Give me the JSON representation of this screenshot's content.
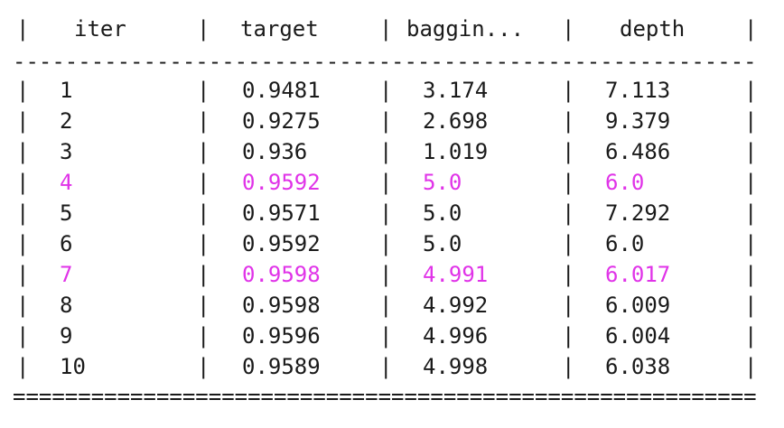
{
  "table": {
    "pipe": "|",
    "headers": {
      "iter": "iter",
      "target": "target",
      "bagging": "baggin...",
      "depth": "depth"
    },
    "header_rule": "------------------------------------------------------------",
    "footer_rule": "============================================================",
    "highlight_color": "#e033e8",
    "rows": [
      {
        "iter": "1",
        "target": "0.9481",
        "bagging": "3.174",
        "depth": "7.113",
        "highlight": false
      },
      {
        "iter": "2",
        "target": "0.9275",
        "bagging": "2.698",
        "depth": "9.379",
        "highlight": false
      },
      {
        "iter": "3",
        "target": "0.936",
        "bagging": "1.019",
        "depth": "6.486",
        "highlight": false
      },
      {
        "iter": "4",
        "target": "0.9592",
        "bagging": "5.0",
        "depth": "6.0",
        "highlight": true
      },
      {
        "iter": "5",
        "target": "0.9571",
        "bagging": "5.0",
        "depth": "7.292",
        "highlight": false
      },
      {
        "iter": "6",
        "target": "0.9592",
        "bagging": "5.0",
        "depth": "6.0",
        "highlight": false
      },
      {
        "iter": "7",
        "target": "0.9598",
        "bagging": "4.991",
        "depth": "6.017",
        "highlight": true
      },
      {
        "iter": "8",
        "target": "0.9598",
        "bagging": "4.992",
        "depth": "6.009",
        "highlight": false
      },
      {
        "iter": "9",
        "target": "0.9596",
        "bagging": "4.996",
        "depth": "6.004",
        "highlight": false
      },
      {
        "iter": "10",
        "target": "0.9589",
        "bagging": "4.998",
        "depth": "6.038",
        "highlight": false
      }
    ]
  }
}
